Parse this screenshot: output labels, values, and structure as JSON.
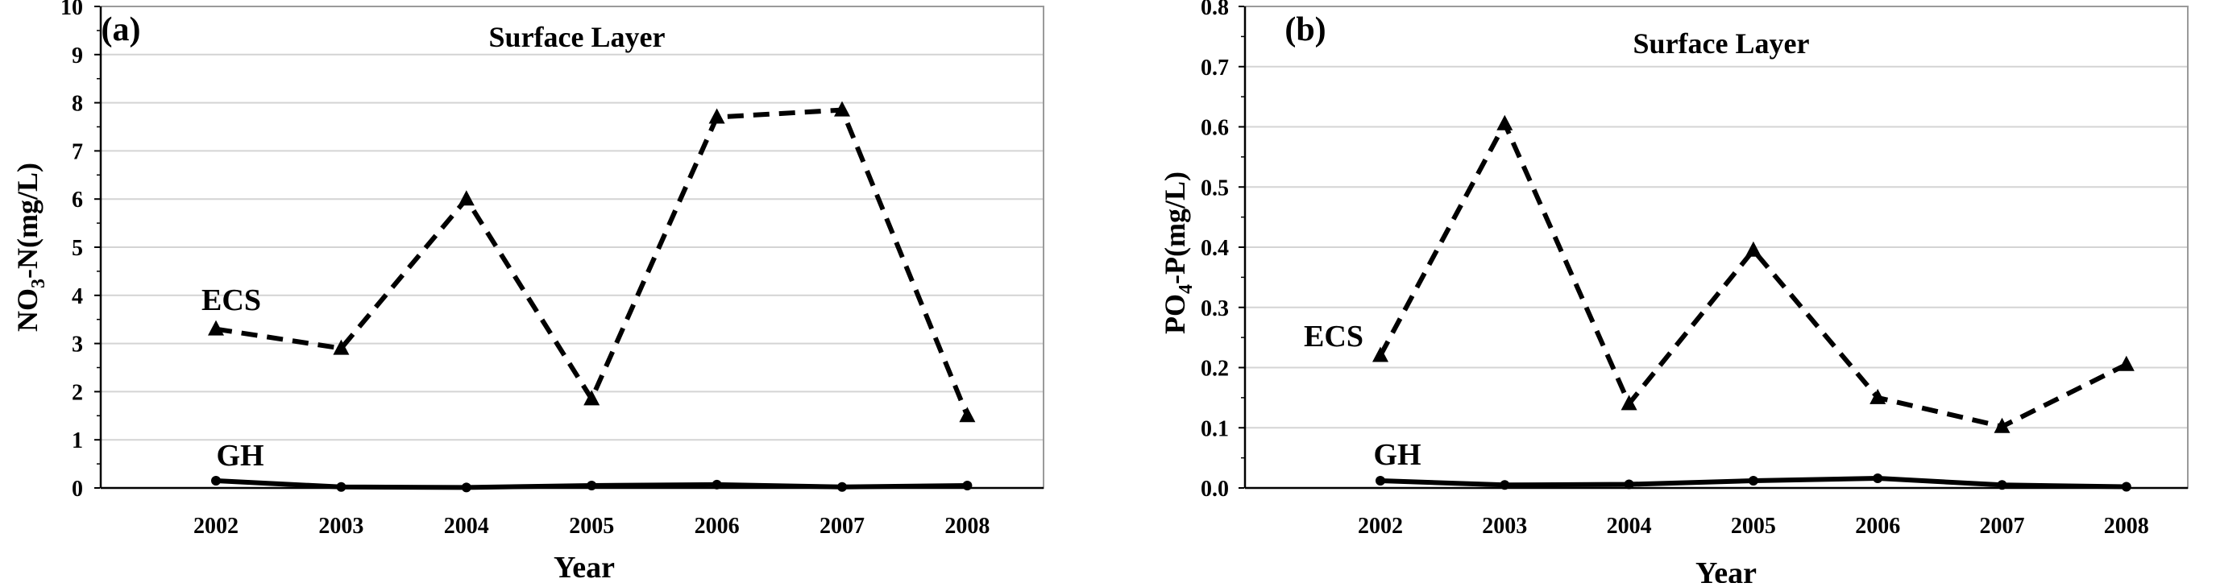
{
  "chart_data": [
    {
      "type": "line",
      "panel_label": "(a)",
      "title": "Surface Layer",
      "xlabel": "Year",
      "ylabel_main": "NO",
      "ylabel_sub": "3",
      "ylabel_rest": "-N(mg/L)",
      "categories": [
        "2002",
        "2003",
        "2004",
        "2005",
        "2006",
        "2007",
        "2008"
      ],
      "ylim": [
        0,
        10
      ],
      "yticks": [
        "0",
        "1",
        "2",
        "3",
        "4",
        "5",
        "6",
        "7",
        "8",
        "9",
        "10"
      ],
      "grid": true,
      "series": [
        {
          "name": "ECS",
          "values": [
            3.3,
            2.9,
            6.0,
            1.85,
            7.7,
            7.85,
            1.5
          ],
          "style": "dashed",
          "marker": "triangle"
        },
        {
          "name": "GH",
          "values": [
            0.15,
            0.02,
            0.01,
            0.05,
            0.07,
            0.02,
            0.05
          ],
          "style": "solid",
          "marker": "circle"
        }
      ]
    },
    {
      "type": "line",
      "panel_label": "(b)",
      "title": "Surface Layer",
      "xlabel": "Year",
      "ylabel_main": "PO",
      "ylabel_sub": "4",
      "ylabel_rest": "-P(mg/L)",
      "categories": [
        "2002",
        "2003",
        "2004",
        "2005",
        "2006",
        "2007",
        "2008"
      ],
      "ylim": [
        0,
        0.8
      ],
      "yticks": [
        "0.0",
        "0.1",
        "0.2",
        "0.3",
        "0.4",
        "0.5",
        "0.6",
        "0.7",
        "0.8"
      ],
      "grid": true,
      "series": [
        {
          "name": "ECS",
          "values": [
            0.22,
            0.605,
            0.14,
            0.395,
            0.15,
            0.102,
            0.205
          ],
          "style": "dashed",
          "marker": "triangle"
        },
        {
          "name": "GH",
          "values": [
            0.012,
            0.005,
            0.006,
            0.012,
            0.016,
            0.005,
            0.002
          ],
          "style": "solid",
          "marker": "circle"
        }
      ]
    }
  ]
}
